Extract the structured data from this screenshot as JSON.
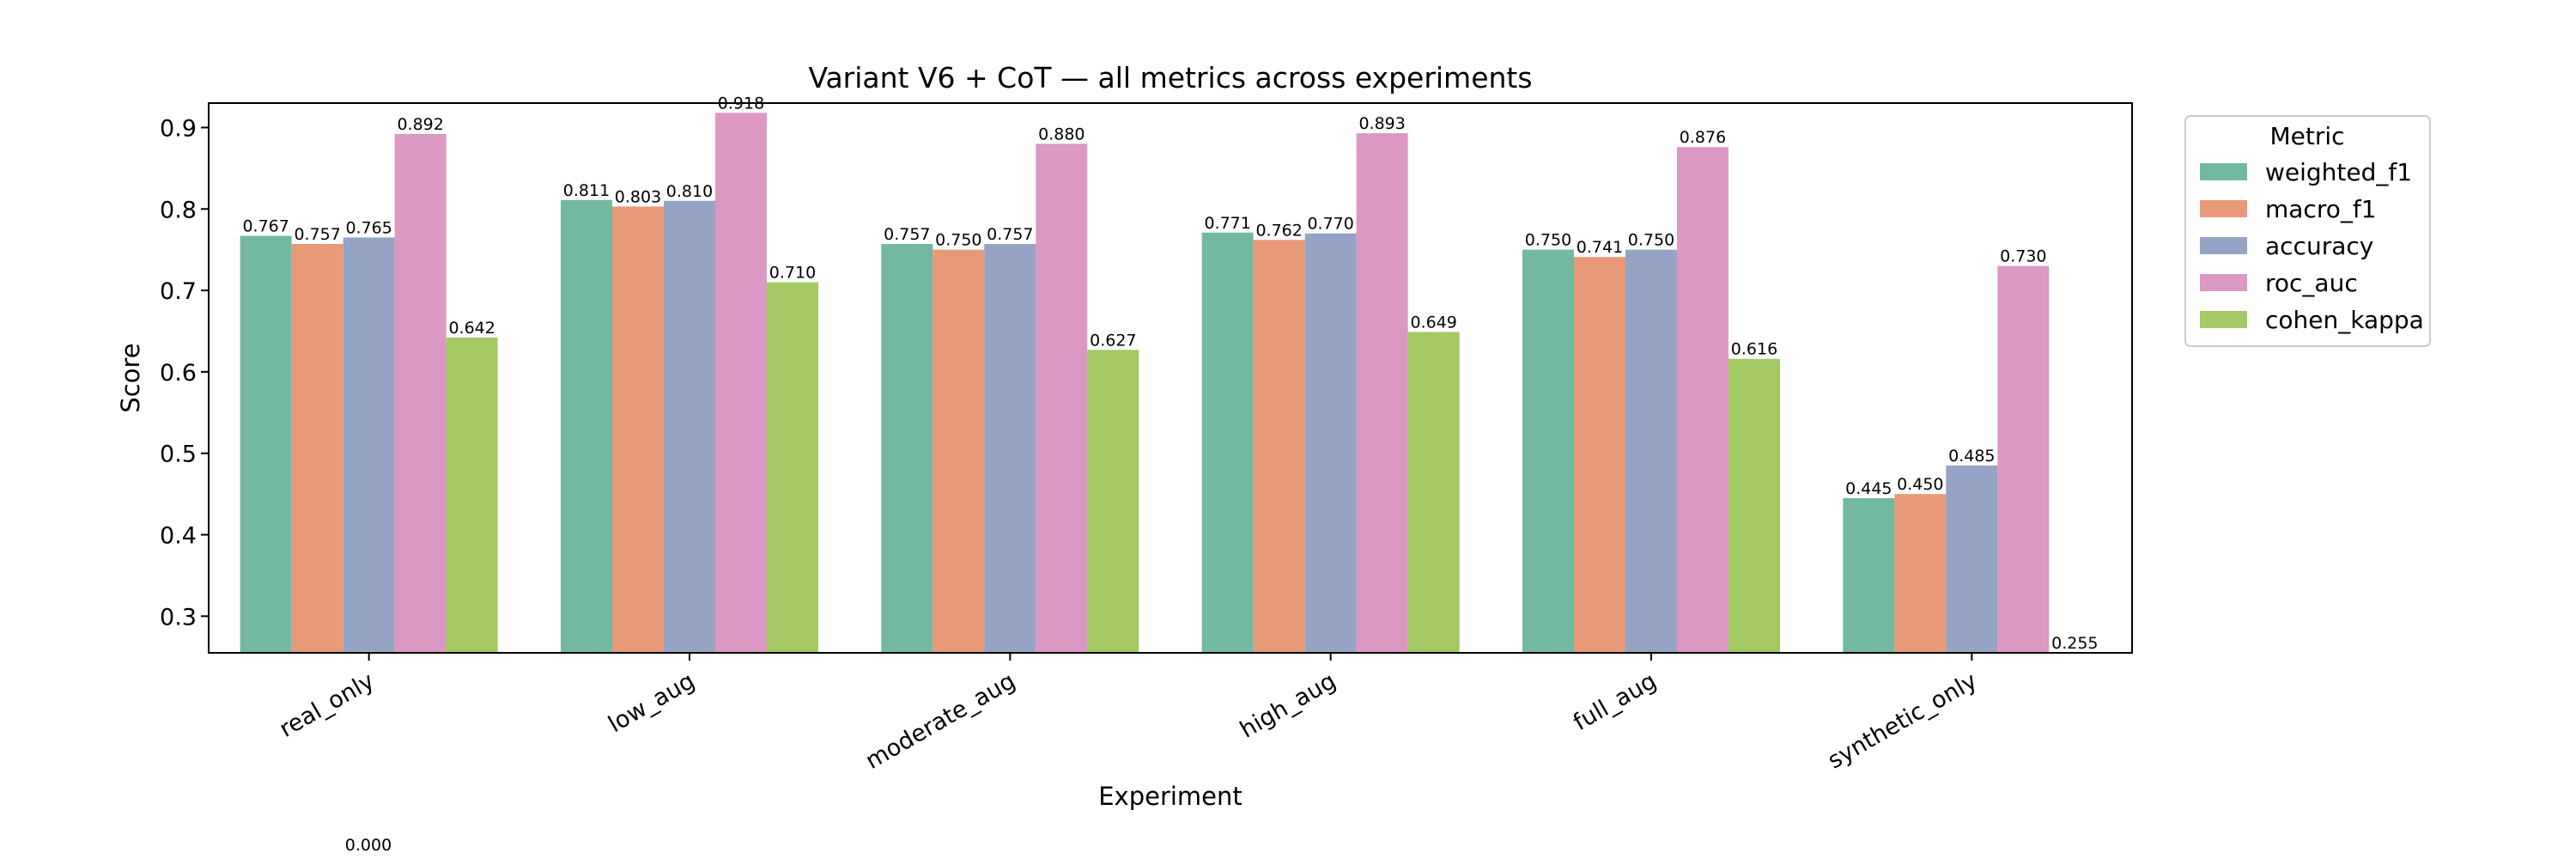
{
  "chart_data": {
    "type": "bar",
    "title": "Variant V6 + CoT — all metrics across experiments",
    "xlabel": "Experiment",
    "ylabel": "Score",
    "ylim": [
      0.255,
      0.93
    ],
    "yticks": [
      0.3,
      0.4,
      0.5,
      0.6,
      0.7,
      0.8,
      0.9
    ],
    "ytick_labels": [
      "0.3",
      "0.4",
      "0.5",
      "0.6",
      "0.7",
      "0.8",
      "0.9"
    ],
    "categories": [
      "real_only",
      "low_aug",
      "moderate_aug",
      "high_aug",
      "full_aug",
      "synthetic_only"
    ],
    "legend": {
      "title": "Metric",
      "placement": "outside-right-top"
    },
    "grid": false,
    "series": [
      {
        "name": "weighted_f1",
        "color": "#73b8a1",
        "values": [
          0.767,
          0.811,
          0.757,
          0.771,
          0.75,
          0.445
        ],
        "labels": [
          "0.767",
          "0.811",
          "0.757",
          "0.771",
          "0.750",
          "0.445"
        ]
      },
      {
        "name": "macro_f1",
        "color": "#e89a78",
        "values": [
          0.757,
          0.803,
          0.75,
          0.762,
          0.741,
          0.45
        ],
        "labels": [
          "0.757",
          "0.803",
          "0.750",
          "0.762",
          "0.741",
          "0.450"
        ]
      },
      {
        "name": "accuracy",
        "color": "#95a4c4",
        "values": [
          0.765,
          0.81,
          0.757,
          0.77,
          0.75,
          0.485
        ],
        "labels": [
          "0.765",
          "0.810",
          "0.757",
          "0.770",
          "0.750",
          "0.485"
        ]
      },
      {
        "name": "roc_auc",
        "color": "#db98c3",
        "values": [
          0.892,
          0.918,
          0.88,
          0.893,
          0.876,
          0.73
        ],
        "labels": [
          "0.892",
          "0.918",
          "0.880",
          "0.893",
          "0.876",
          "0.730"
        ]
      },
      {
        "name": "cohen_kappa",
        "color": "#a3c864",
        "values": [
          0.642,
          0.71,
          0.627,
          0.649,
          0.616,
          0.255
        ],
        "labels": [
          "0.642",
          "0.710",
          "0.627",
          "0.649",
          "0.616",
          "0.255"
        ]
      }
    ],
    "annotations": [
      "0.000"
    ]
  }
}
